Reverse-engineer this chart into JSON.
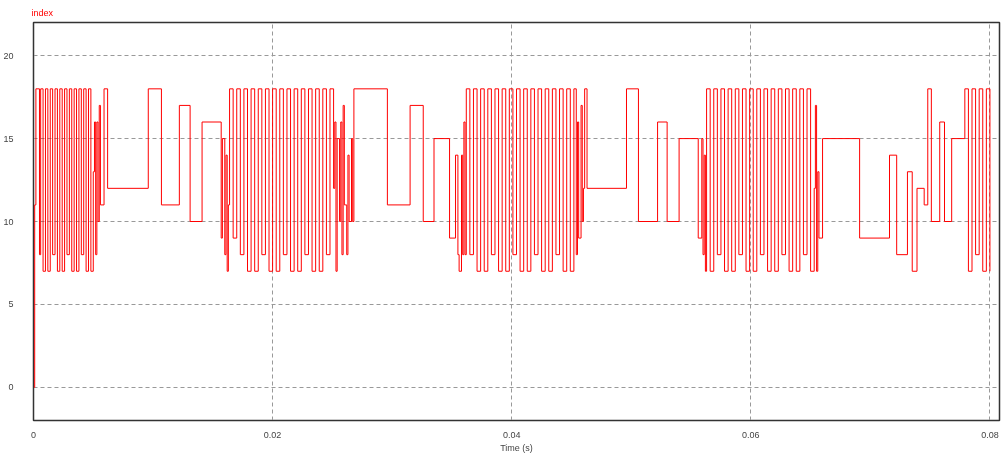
{
  "chart_data": {
    "type": "step",
    "xlabel": "Time (s)",
    "xlim": [
      0,
      0.0808
    ],
    "ylim": [
      -2,
      22
    ],
    "xticks": [
      0,
      0.02,
      0.04,
      0.06,
      0.08
    ],
    "yticks": [
      0,
      5,
      10,
      15,
      20
    ],
    "grid": true,
    "line_style": "solid",
    "series": [
      {
        "name": "index",
        "color": "#ff0000",
        "x": [
          0,
          0.0001,
          0.0002,
          0.0005,
          0.0006,
          0.0008,
          0.001,
          0.0012,
          0.0014,
          0.0016,
          0.0018,
          0.002,
          0.0022,
          0.0024,
          0.0026,
          0.0028,
          0.003,
          0.0032,
          0.0034,
          0.0036,
          0.0038,
          0.004,
          0.0042,
          0.0044,
          0.0046,
          0.0048,
          0.005,
          0.0051,
          0.0052,
          0.0053,
          0.0054,
          0.0055,
          0.0056,
          0.0059,
          0.0062,
          0.0096,
          0.0107,
          0.0122,
          0.0131,
          0.0141,
          0.0157,
          0.0158,
          0.016,
          0.0161,
          0.0162,
          0.0163,
          0.0164,
          0.0167,
          0.017,
          0.0173,
          0.0176,
          0.0179,
          0.0182,
          0.0185,
          0.0188,
          0.0191,
          0.0194,
          0.0197,
          0.02,
          0.0203,
          0.0206,
          0.0209,
          0.0212,
          0.0215,
          0.0218,
          0.0221,
          0.0224,
          0.0227,
          0.023,
          0.0233,
          0.0236,
          0.0239,
          0.0242,
          0.0245,
          0.0248,
          0.0251,
          0.0252,
          0.0253,
          0.0254,
          0.0256,
          0.0257,
          0.0258,
          0.0259,
          0.026,
          0.0262,
          0.0263,
          0.0264,
          0.0266,
          0.0267,
          0.0268,
          0.0296,
          0.0315,
          0.0326,
          0.0335,
          0.0348,
          0.0353,
          0.0355,
          0.0356,
          0.0358,
          0.0359,
          0.036,
          0.0361,
          0.0362,
          0.0365,
          0.0368,
          0.0371,
          0.0374,
          0.0377,
          0.038,
          0.0383,
          0.0386,
          0.0389,
          0.0392,
          0.0395,
          0.0398,
          0.0401,
          0.0404,
          0.0407,
          0.041,
          0.0413,
          0.0416,
          0.0419,
          0.0422,
          0.0425,
          0.0428,
          0.0431,
          0.0434,
          0.0437,
          0.044,
          0.0443,
          0.0446,
          0.0449,
          0.0452,
          0.0454,
          0.0455,
          0.0456,
          0.0458,
          0.0459,
          0.046,
          0.0461,
          0.0463,
          0.0496,
          0.0506,
          0.0522,
          0.053,
          0.054,
          0.0556,
          0.0559,
          0.056,
          0.0561,
          0.0562,
          0.0563,
          0.0566,
          0.0569,
          0.0572,
          0.0575,
          0.0578,
          0.0581,
          0.0584,
          0.0587,
          0.059,
          0.0593,
          0.0596,
          0.0599,
          0.0602,
          0.0605,
          0.0608,
          0.0611,
          0.0614,
          0.0617,
          0.062,
          0.0623,
          0.0626,
          0.0629,
          0.0632,
          0.0635,
          0.0638,
          0.0641,
          0.0644,
          0.0647,
          0.065,
          0.0653,
          0.0654,
          0.0655,
          0.0656,
          0.0657,
          0.066,
          0.0691,
          0.0716,
          0.0722,
          0.0731,
          0.0735,
          0.0739,
          0.0745,
          0.0748,
          0.0751,
          0.0758,
          0.0762,
          0.0768,
          0.0779,
          0.0782,
          0.0785,
          0.0788,
          0.0791,
          0.0794,
          0.0797,
          0.08
        ],
        "values": [
          0,
          11,
          18,
          8,
          18,
          7,
          18,
          7,
          18,
          8,
          18,
          7,
          18,
          7,
          18,
          8,
          18,
          7,
          18,
          7,
          18,
          8,
          18,
          7,
          18,
          7,
          13,
          16,
          8,
          16,
          10,
          17,
          11,
          18,
          12,
          18,
          11,
          17,
          10,
          16,
          9,
          15,
          8,
          14,
          7,
          11,
          18,
          9,
          18,
          8,
          18,
          7,
          18,
          7,
          18,
          8,
          18,
          7,
          18,
          7,
          18,
          8,
          18,
          7,
          18,
          7,
          18,
          8,
          18,
          7,
          18,
          7,
          18,
          8,
          18,
          12,
          16,
          7,
          15,
          10,
          16,
          8,
          17,
          11,
          8,
          14,
          10,
          15,
          10,
          18,
          11,
          17,
          10,
          15,
          9,
          14,
          8,
          7,
          14,
          8,
          16,
          8,
          18,
          8,
          18,
          7,
          18,
          7,
          18,
          8,
          18,
          7,
          18,
          7,
          18,
          8,
          18,
          7,
          18,
          7,
          18,
          8,
          18,
          7,
          18,
          7,
          18,
          8,
          18,
          7,
          18,
          7,
          18,
          8,
          16,
          9,
          17,
          10,
          12,
          18,
          12,
          18,
          10,
          16,
          10,
          15,
          9,
          15,
          8,
          14,
          7,
          18,
          7,
          18,
          8,
          18,
          7,
          18,
          7,
          18,
          8,
          18,
          7,
          18,
          7,
          18,
          8,
          18,
          7,
          18,
          7,
          18,
          8,
          18,
          7,
          18,
          7,
          18,
          8,
          18,
          7,
          12,
          17,
          7,
          13,
          9,
          15,
          9,
          14,
          8,
          13,
          7,
          12,
          11,
          18,
          10,
          16,
          10,
          15,
          18,
          7,
          18,
          8,
          18,
          7,
          18,
          7
        ]
      }
    ]
  }
}
